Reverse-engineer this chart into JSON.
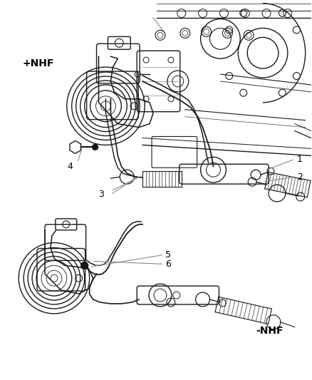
{
  "background_color": "#ffffff",
  "text_color": "#000000",
  "line_color": "#1a1a1a",
  "callout_color": "#888888",
  "figsize": [
    4.38,
    5.33
  ],
  "dpi": 100,
  "labels": {
    "nhf_plus": "+NHF",
    "nhf_minus": "-NHF",
    "1": "1",
    "2": "2",
    "3": "3",
    "4": "4",
    "5": "5",
    "6": "6"
  }
}
